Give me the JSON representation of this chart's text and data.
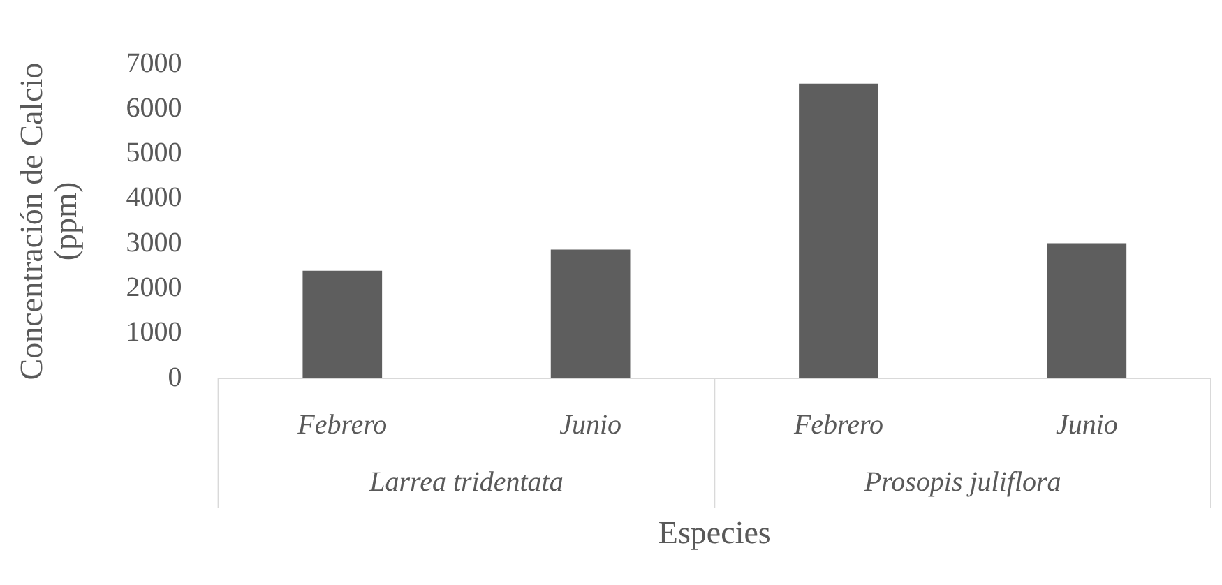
{
  "chart_data": {
    "type": "bar",
    "xlabel": "Especies",
    "ylabel": "Concentración de Calcio (ppm)",
    "categories": [
      "Febrero",
      "Junio",
      "Febrero",
      "Junio"
    ],
    "values": [
      2400,
      2870,
      6570,
      3010
    ],
    "color": "#5e5e5e",
    "ylim": [
      0,
      7000
    ],
    "yticks": [
      0,
      1000,
      2000,
      3000,
      4000,
      5000,
      6000,
      7000
    ],
    "grid": false,
    "legend": false,
    "annotations": [
      "Larrea tridentata",
      "Prosopis juliflora"
    ]
  }
}
